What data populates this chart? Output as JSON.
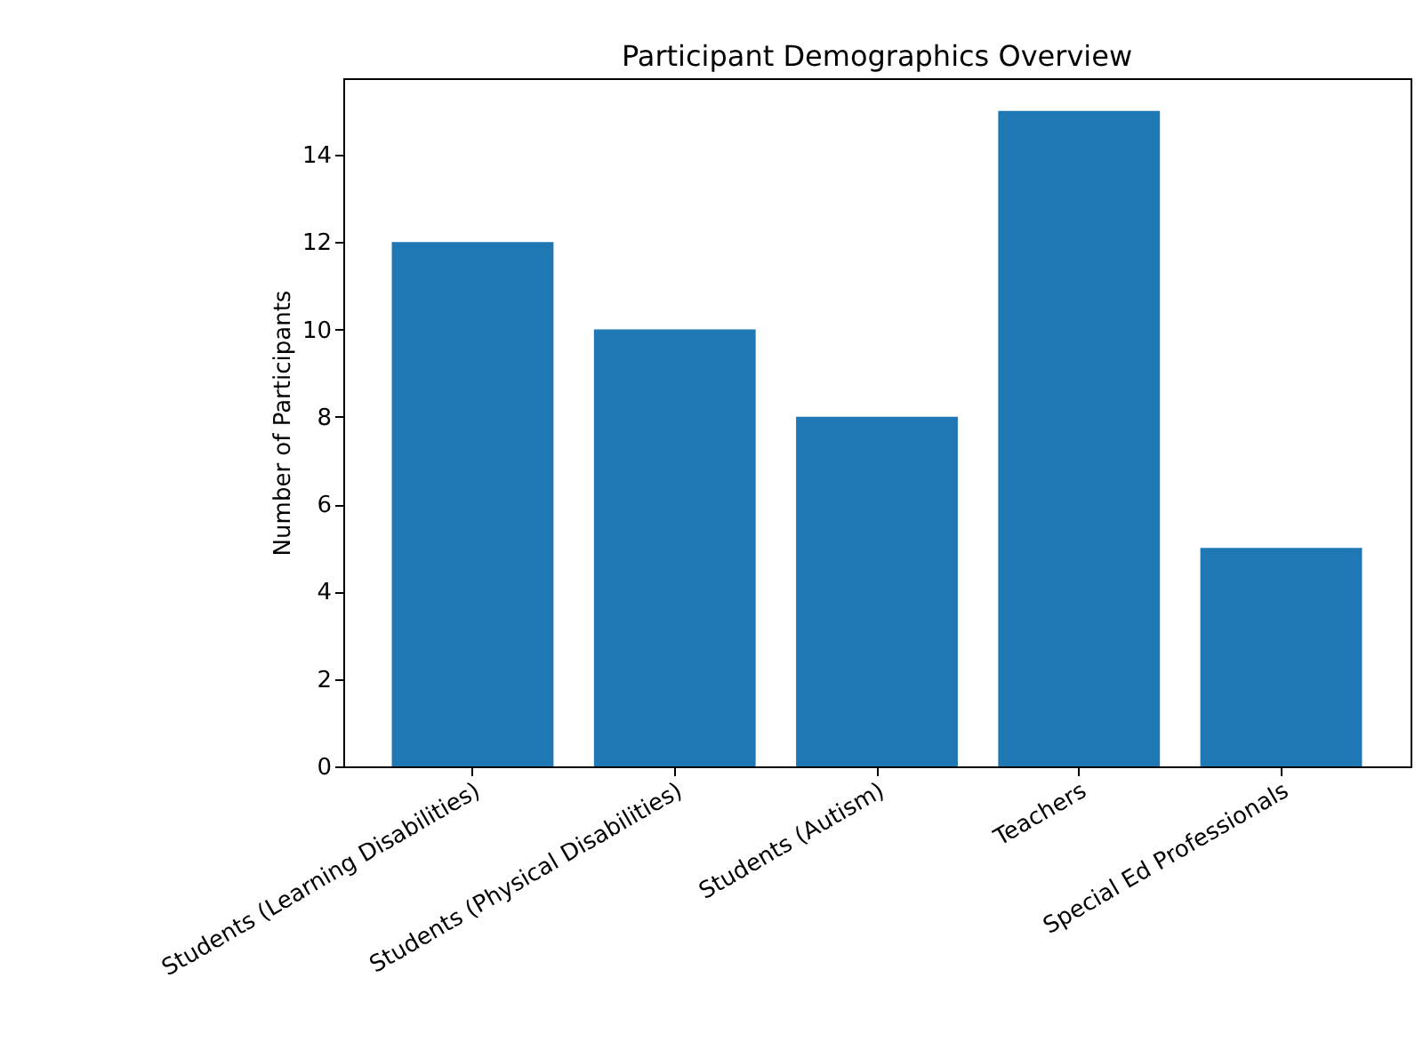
{
  "chart_data": {
    "type": "bar",
    "title": "Participant Demographics Overview",
    "ylabel": "Number of Participants",
    "categories": [
      "Students (Learning Disabilities)",
      "Students (Physical Disabilities)",
      "Students (Autism)",
      "Teachers",
      "Special Ed Professionals"
    ],
    "values": [
      12,
      10,
      8,
      15,
      5
    ],
    "color": "#1f77b4",
    "ylim": [
      0,
      15.75
    ],
    "yticks": [
      0,
      2,
      4,
      6,
      8,
      10,
      12,
      14
    ],
    "grid": false
  }
}
